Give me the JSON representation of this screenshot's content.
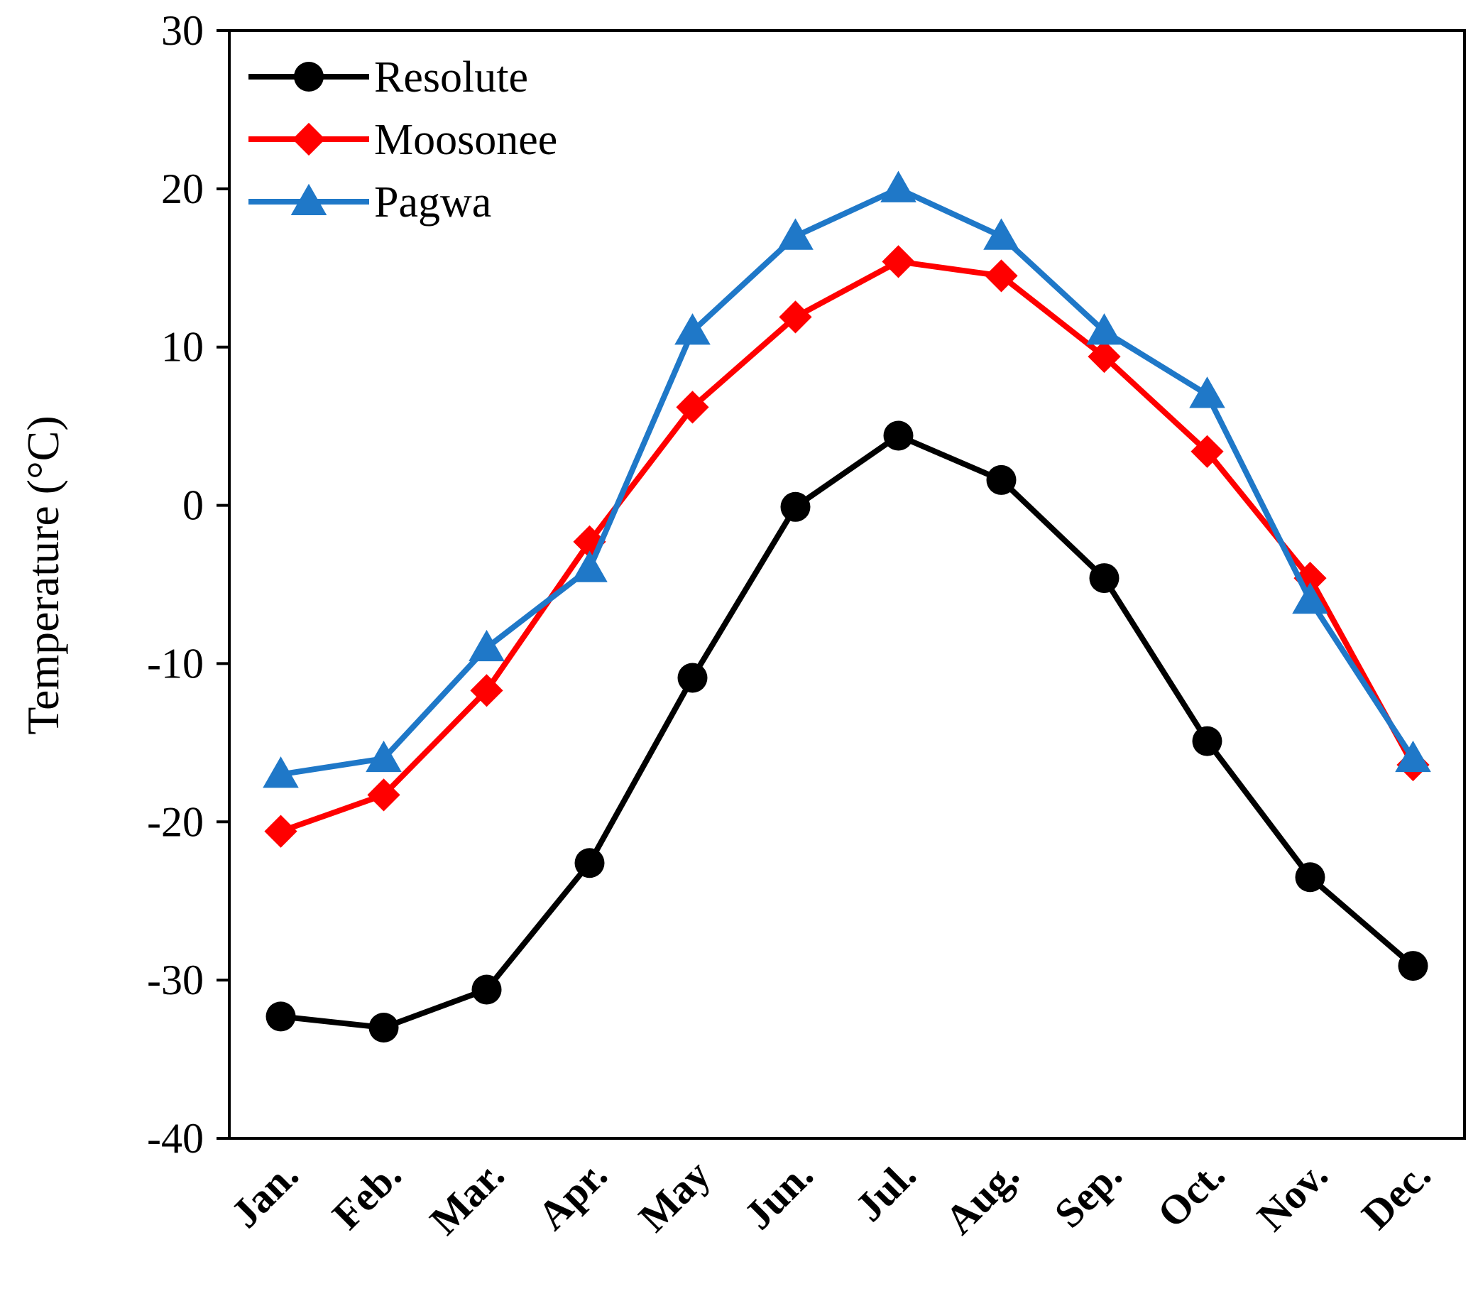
{
  "chart_data": {
    "type": "line",
    "title": "",
    "xlabel": "",
    "ylabel": "Temperature (°C)",
    "ylim": [
      -40,
      30
    ],
    "yticks": [
      30,
      20,
      10,
      0,
      -10,
      -20,
      -30,
      -40
    ],
    "ytick_labels": [
      "30",
      "20",
      "10",
      "0",
      "-10",
      "-20",
      "-30",
      "-40"
    ],
    "grid": false,
    "legend_position": "top-left",
    "categories": [
      "Jan.",
      "Feb.",
      "Mar.",
      "Apr.",
      "May",
      "Jun.",
      "Jul.",
      "Aug.",
      "Sep.",
      "Oct.",
      "Nov.",
      "Dec."
    ],
    "series": [
      {
        "name": "Resolute",
        "color": "#000000",
        "marker": "circle",
        "values": [
          -32.3,
          -33.0,
          -30.6,
          -22.6,
          -10.9,
          -0.1,
          4.4,
          1.6,
          -4.6,
          -14.9,
          -23.5,
          -29.1
        ]
      },
      {
        "name": "Moosonee",
        "color": "#ff0000",
        "marker": "diamond",
        "values": [
          -20.6,
          -18.3,
          -11.7,
          -2.3,
          6.2,
          11.9,
          15.4,
          14.5,
          9.4,
          3.4,
          -4.6,
          -16.4
        ]
      },
      {
        "name": "Pagwa",
        "color": "#1f78c8",
        "marker": "triangle",
        "values": [
          -17.0,
          -16.0,
          -9.0,
          -4.0,
          11.0,
          17.0,
          20.0,
          17.0,
          11.0,
          7.0,
          -6.0,
          -16.0
        ]
      }
    ]
  }
}
